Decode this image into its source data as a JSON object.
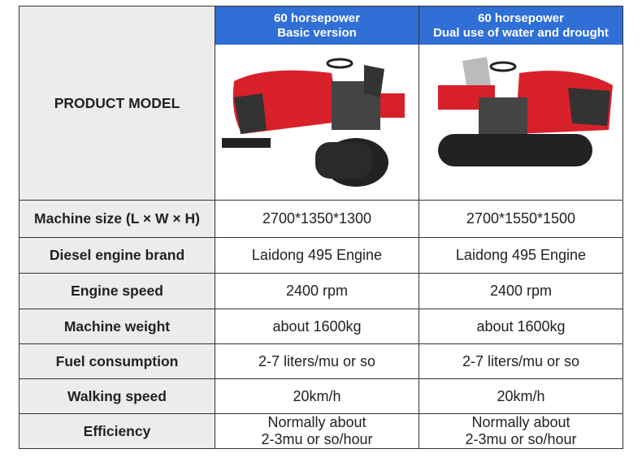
{
  "table": {
    "corner": "PRODUCT MODEL",
    "columns": [
      [
        "60 horsepower",
        "Basic version"
      ],
      [
        "60 horsepower",
        "Dual use of water and drought"
      ]
    ],
    "rows": [
      [
        "Machine size (L × W × H)",
        "2700*1350*1300",
        "2700*1550*1500"
      ],
      [
        "Diesel engine brand",
        "Laidong 495 Engine",
        "Laidong 495 Engine"
      ],
      [
        "Engine speed",
        "2400 rpm",
        "2400 rpm"
      ],
      [
        "Machine weight",
        "about 1600kg",
        "about 1600kg"
      ],
      [
        "Fuel consumption",
        "2-7 liters/mu or so",
        "2-7 liters/mu or so"
      ],
      [
        "Walking speed",
        "20km/h",
        "20km/h"
      ],
      [
        "Efficiency",
        [
          "Normally about",
          "2-3mu or so/hour"
        ],
        [
          "Normally about",
          "2-3mu or so/hour"
        ]
      ]
    ]
  }
}
